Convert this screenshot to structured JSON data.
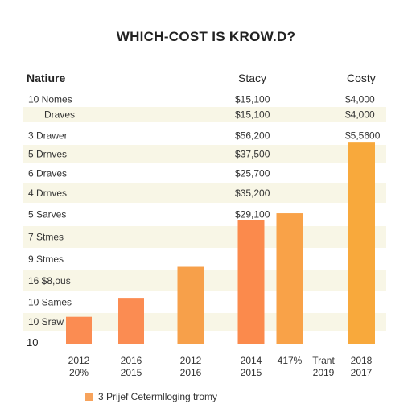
{
  "title": "WHICH-COST IS KROW.D?",
  "headers": {
    "col1": "Natiure",
    "col2": "Stacy",
    "col3": "Costy"
  },
  "rows": [
    {
      "label": "10 Nomes",
      "mid": "$15,100",
      "right": "$4,000"
    },
    {
      "label": "Draves",
      "mid": "$15,100",
      "right": "$4,000"
    },
    {
      "label": "3 Drawer",
      "mid": "$56,200",
      "right": "$5,5600"
    },
    {
      "label": "5 Drnves",
      "mid": "$37,500",
      "right": ""
    },
    {
      "label": "6 Draves",
      "mid": "$25,700",
      "right": ""
    },
    {
      "label": "4 Drnves",
      "mid": "$35,200",
      "right": ""
    },
    {
      "label": "5 Sarves",
      "mid": "$29,100",
      "right": ""
    },
    {
      "label": "7 Stmes",
      "mid": "",
      "right": ""
    },
    {
      "label": "9 Stmes",
      "mid": "",
      "right": ""
    },
    {
      "label": "16 $8,ous",
      "mid": "",
      "right": ""
    },
    {
      "label": "10 Sames",
      "mid": "",
      "right": ""
    },
    {
      "label": "10 Sraw",
      "mid": "",
      "right": ""
    }
  ],
  "baseline_label": "10",
  "chart_data": {
    "type": "bar",
    "title": "WHICH-COST IS KROW.D?",
    "categories": [
      "2012 20%",
      "2016 2015",
      "2012 2016",
      "2014 2015",
      "417%",
      "Trant 2019",
      "2018 2017"
    ],
    "x_labels_line1": [
      "2012",
      "2016",
      "2012",
      "2014",
      "417%",
      "Trant",
      "2018"
    ],
    "x_labels_line2": [
      "20%",
      "2015",
      "2016",
      "2015",
      "",
      "2019",
      "2017"
    ],
    "values": [
      1.6,
      2.7,
      4.5,
      7.2,
      7.6,
      null,
      11.7
    ],
    "ylim": [
      0,
      12.5
    ],
    "bar_colors": [
      "#fb8c52",
      "#fb8c52",
      "#f7a04a",
      "#fb8a4c",
      "#f9a248",
      null,
      "#f8a93c"
    ],
    "grid": false,
    "legend": {
      "label": "3 Prijef Cetermlloging tromy",
      "color": "#f7a35c",
      "position": "bottom"
    }
  }
}
